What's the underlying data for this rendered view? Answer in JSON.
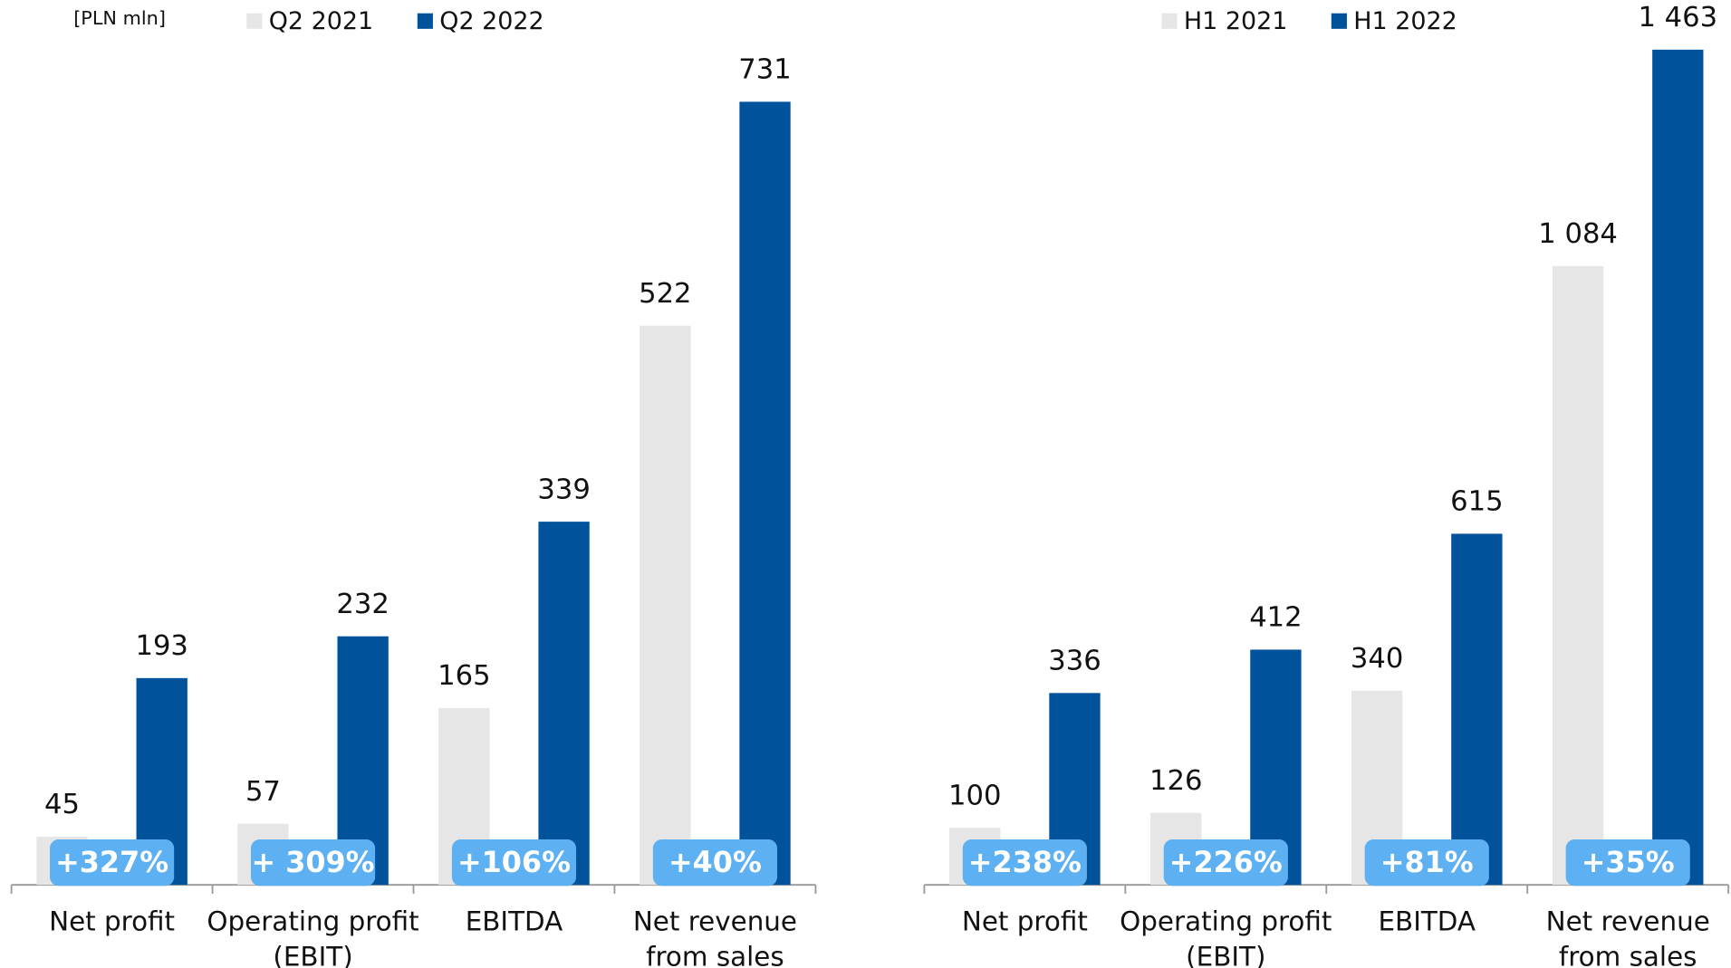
{
  "chart_data": [
    {
      "type": "bar",
      "unit_label": "[PLN mln]",
      "categories": [
        [
          "Net profit"
        ],
        [
          "Operating profit",
          "(EBIT)"
        ],
        [
          "EBITDA"
        ],
        [
          "Net revenue",
          "from sales"
        ]
      ],
      "series": [
        {
          "name": "Q2 2021",
          "color": "#e6e6e6",
          "values": [
            45,
            57,
            165,
            522
          ]
        },
        {
          "name": "Q2 2022",
          "color": "#00529b",
          "values": [
            193,
            232,
            339,
            731
          ]
        }
      ],
      "badges": [
        "+327%",
        "+ 309%",
        "+106%",
        "+40%"
      ],
      "ylim": [
        0,
        826
      ]
    },
    {
      "type": "bar",
      "categories": [
        [
          "Net profit"
        ],
        [
          "Operating profit",
          "(EBIT)"
        ],
        [
          "EBITDA"
        ],
        [
          "Net revenue",
          "from sales"
        ]
      ],
      "series": [
        {
          "name": "H1 2021",
          "color": "#e6e6e6",
          "values": [
            100,
            126,
            340,
            1084
          ],
          "value_labels": [
            "100",
            "126",
            "340",
            "1 084"
          ]
        },
        {
          "name": "H1 2022",
          "color": "#00529b",
          "values": [
            336,
            412,
            615,
            1463
          ],
          "value_labels": [
            "336",
            "412",
            "615",
            "1 463"
          ]
        }
      ],
      "badges": [
        "+238%",
        "+226%",
        "+81%",
        "+35%"
      ],
      "ylim": [
        0,
        1550
      ]
    }
  ]
}
